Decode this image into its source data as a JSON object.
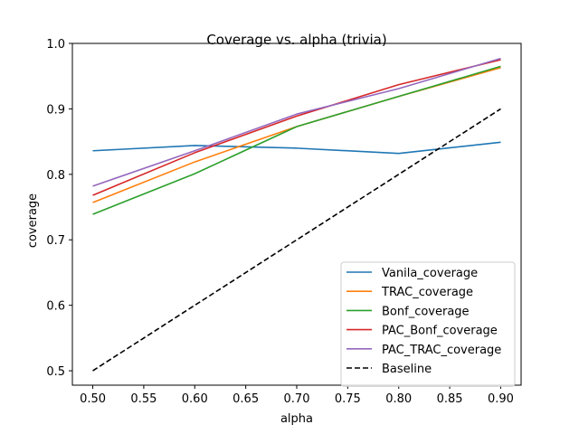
{
  "chart_data": {
    "type": "line",
    "title": "Coverage vs. alpha (trivia)",
    "xlabel": "alpha",
    "ylabel": "coverage",
    "xlim": [
      0.48,
      0.92
    ],
    "ylim": [
      0.478,
      1.0
    ],
    "x_ticks": [
      "0.50",
      "0.55",
      "0.60",
      "0.65",
      "0.70",
      "0.75",
      "0.80",
      "0.85",
      "0.90"
    ],
    "y_ticks": [
      "0.5",
      "0.6",
      "0.7",
      "0.8",
      "0.9",
      "1.0"
    ],
    "x": [
      0.5,
      0.6,
      0.7,
      0.8,
      0.9
    ],
    "legend_position": "lower-right",
    "grid": false,
    "series": [
      {
        "name": "Vanila_coverage",
        "color": "#1f77b4",
        "dash": "solid",
        "values": [
          0.836,
          0.844,
          0.84,
          0.832,
          0.849
        ]
      },
      {
        "name": "TRAC_coverage",
        "color": "#ff7f0e",
        "dash": "solid",
        "values": [
          0.757,
          0.819,
          0.873,
          0.919,
          0.963
        ]
      },
      {
        "name": "Bonf_coverage",
        "color": "#2ca02c",
        "dash": "solid",
        "values": [
          0.739,
          0.801,
          0.873,
          0.919,
          0.965
        ]
      },
      {
        "name": "PAC_Bonf_coverage",
        "color": "#d62728",
        "dash": "solid",
        "values": [
          0.768,
          0.833,
          0.889,
          0.937,
          0.975
        ]
      },
      {
        "name": "PAC_TRAC_coverage",
        "color": "#9467bd",
        "dash": "solid",
        "values": [
          0.782,
          0.836,
          0.892,
          0.931,
          0.977
        ]
      },
      {
        "name": "Baseline",
        "color": "#000000",
        "dash": "dashed",
        "values": [
          0.5,
          0.6,
          0.7,
          0.8,
          0.9
        ]
      }
    ]
  }
}
